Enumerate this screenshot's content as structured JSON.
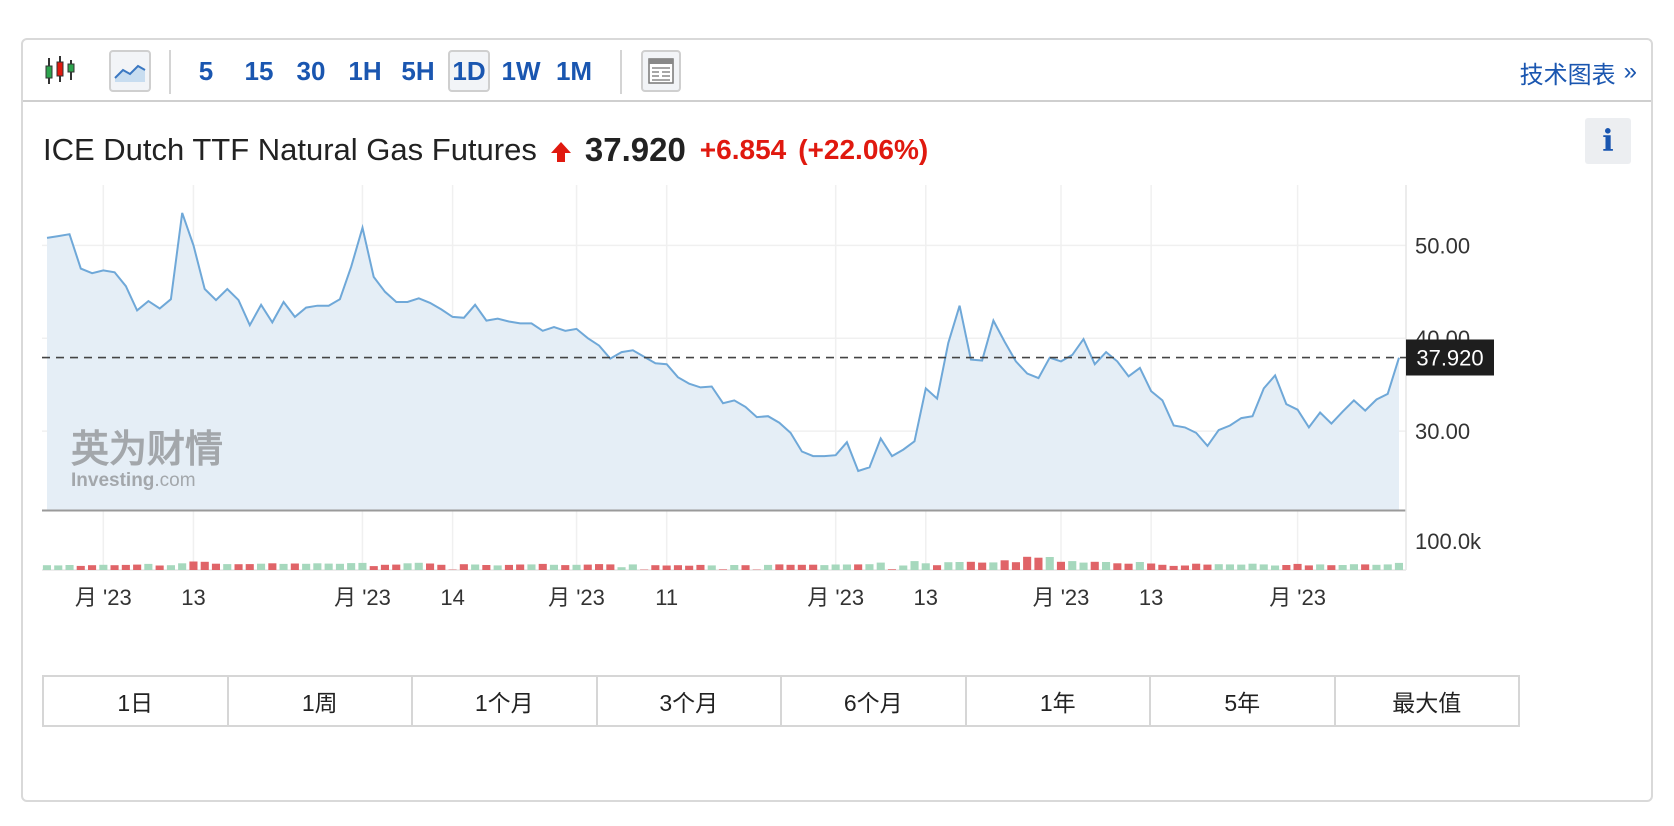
{
  "toolbar": {
    "timeframes": [
      "5",
      "15",
      "30",
      "1H",
      "5H",
      "1D",
      "1W",
      "1M"
    ],
    "active_timeframe": "1D",
    "tech_chart_link": "技术图表",
    "tech_chart_chevron": "»"
  },
  "instrument": {
    "name": "ICE Dutch TTF Natural Gas Futures",
    "price": "37.920",
    "change": "+6.854",
    "change_pct": "(+22.06%)",
    "direction": "up"
  },
  "info_button": "i",
  "watermark": {
    "cn": "英为财情",
    "en_main": "Investing",
    "en_suffix": ".com"
  },
  "ranges": [
    "1日",
    "1周",
    "1个月",
    "3个月",
    "6个月",
    "1年",
    "5年",
    "最大值"
  ],
  "colors": {
    "accent": "#1a56b0",
    "up_red": "#e0190f",
    "line": "#6fa8d8",
    "area": "#e4edf6",
    "vol_green": "#a6d8bd",
    "vol_red": "#e06468",
    "price_label_bg": "#1e1e1e"
  },
  "chart_data": {
    "type": "area",
    "title": "ICE Dutch TTF Natural Gas Futures",
    "y_ticks": [
      "50.00",
      "40.00",
      "30.00"
    ],
    "ylim": [
      21.5,
      56.5
    ],
    "last_price_label": "37.920",
    "last_price": 37.92,
    "volume_tick": "100.0k",
    "volume_max": 140000,
    "grid": true,
    "x_ticks": [
      {
        "label": "月 '23",
        "index": 5
      },
      {
        "label": "13",
        "index": 13
      },
      {
        "label": "月 '23",
        "index": 28
      },
      {
        "label": "14",
        "index": 36
      },
      {
        "label": "月 '23",
        "index": 47
      },
      {
        "label": "11",
        "index": 55
      },
      {
        "label": "月 '23",
        "index": 70
      },
      {
        "label": "13",
        "index": 78
      },
      {
        "label": "月 '23",
        "index": 90
      },
      {
        "label": "13",
        "index": 98
      },
      {
        "label": "月 '23",
        "index": 111
      }
    ],
    "series": [
      {
        "values": [
          50.8,
          51.0,
          51.2,
          47.5,
          47.0,
          47.3,
          47.1,
          45.6,
          43.0,
          44.0,
          43.2,
          44.2,
          53.5,
          50.0,
          45.3,
          44.1,
          45.3,
          44.1,
          41.4,
          43.6,
          41.7,
          43.9,
          42.3,
          43.3,
          43.5,
          43.5,
          44.2,
          47.7,
          51.9,
          46.6,
          45.0,
          43.9,
          43.9,
          44.3,
          43.8,
          43.1,
          42.3,
          42.2,
          43.6,
          41.9,
          42.1,
          41.8,
          41.6,
          41.6,
          40.8,
          41.2,
          40.8,
          41.0,
          40.0,
          39.2,
          37.8,
          38.5,
          38.7,
          38.0,
          37.3,
          37.2,
          35.8,
          35.1,
          34.7,
          34.8,
          33.0,
          33.3,
          32.6,
          31.5,
          31.6,
          30.9,
          29.8,
          27.8,
          27.3,
          27.3,
          27.4,
          28.8,
          25.7,
          26.1,
          29.2,
          27.3,
          28.0,
          28.9,
          34.6,
          33.5,
          39.5,
          43.5,
          37.7,
          37.6,
          41.9,
          39.6,
          37.5,
          36.2,
          35.7,
          37.9,
          37.5,
          38.2,
          39.9,
          37.2,
          38.5,
          37.5,
          35.9,
          36.8,
          34.3,
          33.3,
          30.6,
          30.4,
          29.8,
          28.4,
          30.1,
          30.6,
          31.4,
          31.6,
          34.6,
          36.0,
          32.9,
          32.3,
          30.4,
          32.0,
          30.8,
          32.1,
          33.3,
          32.2,
          33.4,
          34.0,
          37.9
        ],
        "volumes": [
          13000,
          12500,
          13500,
          11000,
          12800,
          14000,
          13000,
          13800,
          14500,
          16500,
          12000,
          13000,
          18000,
          23000,
          22000,
          17000,
          16000,
          15500,
          15800,
          17000,
          18000,
          16500,
          17500,
          16800,
          18000,
          17200,
          16800,
          18500,
          19000,
          10500,
          14000,
          14500,
          18000,
          19500,
          17500,
          14000,
          1000,
          15500,
          14800,
          13500,
          12500,
          13800,
          14800,
          15000,
          16500,
          14000,
          13200,
          14000,
          14600,
          16000,
          15000,
          7500,
          15000,
          1000,
          12800,
          12000,
          13000,
          11500,
          13600,
          12500,
          1500,
          13500,
          12800,
          1000,
          13700,
          15000,
          14000,
          14000,
          14200,
          13200,
          14800,
          14800,
          15000,
          15500,
          20000,
          2000,
          12000,
          24000,
          18000,
          13000,
          21000,
          21500,
          22000,
          20000,
          20500,
          26000,
          21000,
          35500,
          33000,
          35000,
          22000,
          24000,
          20000,
          22000,
          21500,
          18000,
          17000,
          21500,
          17500,
          14000,
          11000,
          12000,
          17000,
          14500,
          15500,
          15000,
          14500,
          17000,
          15000,
          12000,
          13500,
          16500,
          12500,
          15000,
          13000,
          13500,
          15500,
          15000,
          14000,
          15000,
          19000
        ]
      }
    ]
  }
}
